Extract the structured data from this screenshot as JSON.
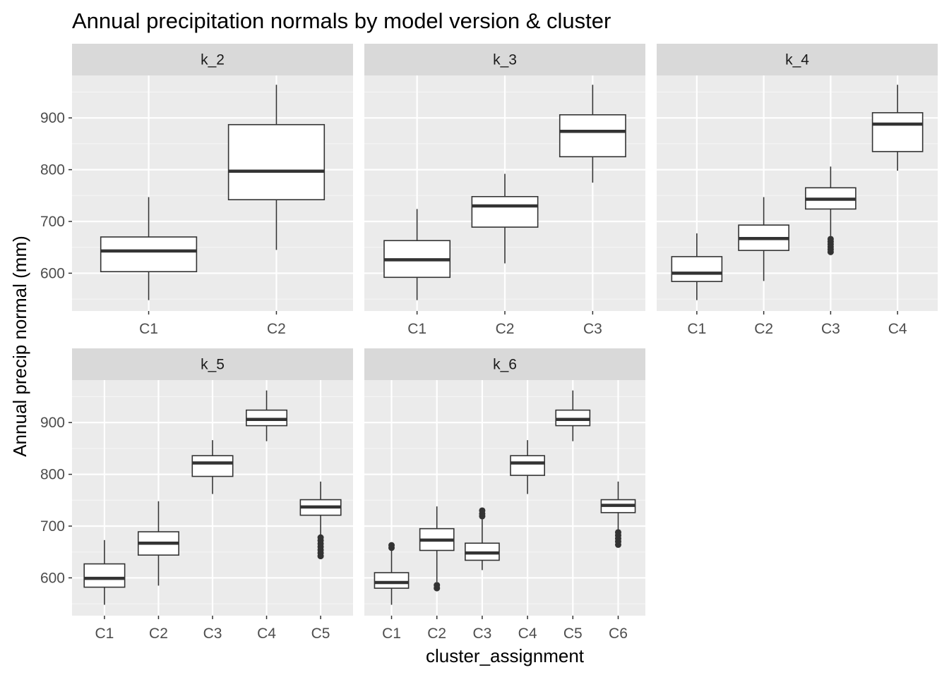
{
  "title": "Annual precipitation normals by model version & cluster",
  "colors": {
    "panel_bg": "#EBEBEB",
    "strip_bg": "#D9D9D9",
    "grid_major": "#FFFFFF",
    "box_fill": "#FFFFFF",
    "box_line": "#333333",
    "tick_text": "#4D4D4D"
  },
  "chart_data": {
    "type": "boxplot",
    "facet_layout": "3 columns x 2 rows",
    "xlabel": "cluster_assignment",
    "ylabel": "Annual precip normal (mm)",
    "ylim": [
      527,
      982
    ],
    "y_ticks": [
      600,
      700,
      800,
      900
    ],
    "grid": true,
    "legend": "none",
    "panels": [
      {
        "name": "k_2",
        "boxes": [
          {
            "category": "C1",
            "lower_whisker": 548,
            "q1": 603,
            "median": 643,
            "q3": 670,
            "upper_whisker": 747,
            "outliers": []
          },
          {
            "category": "C2",
            "lower_whisker": 645,
            "q1": 742,
            "median": 797,
            "q3": 887,
            "upper_whisker": 964,
            "outliers": []
          }
        ]
      },
      {
        "name": "k_3",
        "boxes": [
          {
            "category": "C1",
            "lower_whisker": 548,
            "q1": 592,
            "median": 626,
            "q3": 663,
            "upper_whisker": 724,
            "outliers": []
          },
          {
            "category": "C2",
            "lower_whisker": 619,
            "q1": 689,
            "median": 730,
            "q3": 748,
            "upper_whisker": 792,
            "outliers": []
          },
          {
            "category": "C3",
            "lower_whisker": 775,
            "q1": 825,
            "median": 874,
            "q3": 906,
            "upper_whisker": 964,
            "outliers": []
          }
        ]
      },
      {
        "name": "k_4",
        "boxes": [
          {
            "category": "C1",
            "lower_whisker": 548,
            "q1": 584,
            "median": 600,
            "q3": 632,
            "upper_whisker": 677,
            "outliers": []
          },
          {
            "category": "C2",
            "lower_whisker": 585,
            "q1": 644,
            "median": 667,
            "q3": 693,
            "upper_whisker": 747,
            "outliers": []
          },
          {
            "category": "C3",
            "lower_whisker": 672,
            "q1": 724,
            "median": 743,
            "q3": 765,
            "upper_whisker": 806,
            "outliers": [
              641,
              646,
              651,
              656,
              661,
              666
            ]
          },
          {
            "category": "C4",
            "lower_whisker": 798,
            "q1": 835,
            "median": 888,
            "q3": 910,
            "upper_whisker": 964,
            "outliers": []
          }
        ]
      },
      {
        "name": "k_5",
        "boxes": [
          {
            "category": "C1",
            "lower_whisker": 548,
            "q1": 582,
            "median": 599,
            "q3": 627,
            "upper_whisker": 673,
            "outliers": []
          },
          {
            "category": "C2",
            "lower_whisker": 585,
            "q1": 644,
            "median": 667,
            "q3": 689,
            "upper_whisker": 748,
            "outliers": []
          },
          {
            "category": "C3",
            "lower_whisker": 762,
            "q1": 796,
            "median": 822,
            "q3": 836,
            "upper_whisker": 866,
            "outliers": []
          },
          {
            "category": "C4",
            "lower_whisker": 864,
            "q1": 894,
            "median": 906,
            "q3": 924,
            "upper_whisker": 962,
            "outliers": []
          },
          {
            "category": "C5",
            "lower_whisker": 683,
            "q1": 721,
            "median": 737,
            "q3": 751,
            "upper_whisker": 786,
            "outliers": [
              642,
              648,
              654,
              660,
              666,
              672,
              678
            ]
          }
        ]
      },
      {
        "name": "k_6",
        "boxes": [
          {
            "category": "C1",
            "lower_whisker": 548,
            "q1": 580,
            "median": 591,
            "q3": 610,
            "upper_whisker": 654,
            "outliers": [
              658,
              663
            ]
          },
          {
            "category": "C2",
            "lower_whisker": 592,
            "q1": 653,
            "median": 673,
            "q3": 695,
            "upper_whisker": 738,
            "outliers": [
              580,
              586
            ]
          },
          {
            "category": "C3",
            "lower_whisker": 615,
            "q1": 634,
            "median": 648,
            "q3": 667,
            "upper_whisker": 713,
            "outliers": [
              719,
              724,
              730
            ]
          },
          {
            "category": "C4",
            "lower_whisker": 762,
            "q1": 798,
            "median": 822,
            "q3": 836,
            "upper_whisker": 866,
            "outliers": []
          },
          {
            "category": "C5",
            "lower_whisker": 864,
            "q1": 894,
            "median": 906,
            "q3": 924,
            "upper_whisker": 962,
            "outliers": []
          },
          {
            "category": "C6",
            "lower_whisker": 692,
            "q1": 726,
            "median": 740,
            "q3": 751,
            "upper_whisker": 786,
            "outliers": [
              664,
              670,
              676,
              682,
              688
            ]
          }
        ]
      }
    ]
  }
}
